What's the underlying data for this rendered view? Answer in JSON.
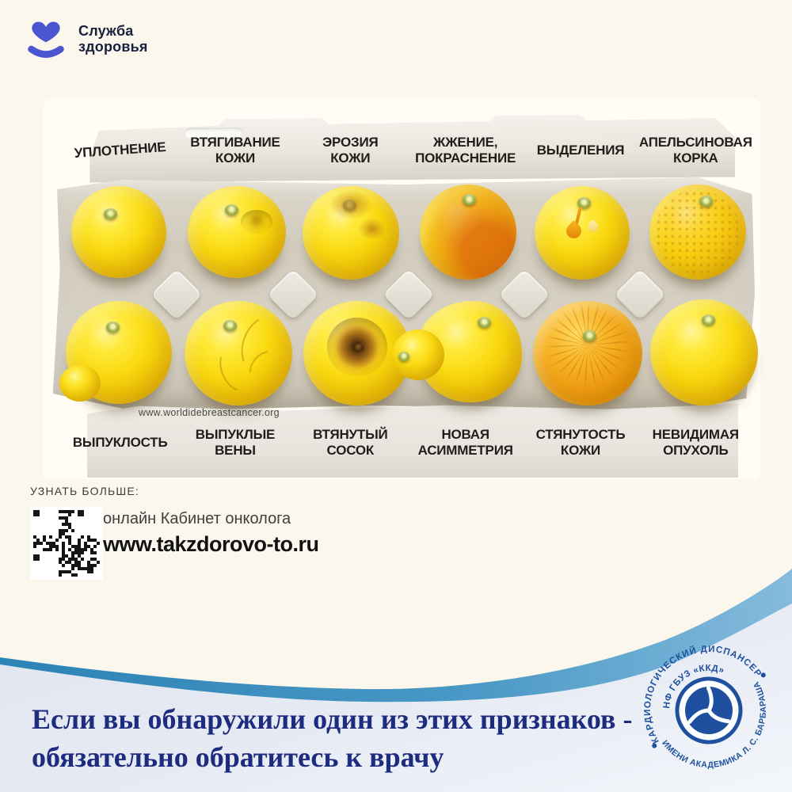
{
  "header": {
    "brand": "Служба\nздоровья"
  },
  "carton": {
    "watermark": "www.worldidebreastcancer.org",
    "top_labels": [
      "УПЛОТНЕНИЕ",
      "ВТЯГИВАНИЕ\nКОЖИ",
      "ЭРОЗИЯ\nКОЖИ",
      "ЖЖЕНИЕ,\nПОКРАСНЕНИЕ",
      "ВЫДЕЛЕНИЯ",
      "АПЕЛЬСИНОВАЯ\nКОРКА"
    ],
    "bottom_labels": [
      "ВЫПУКЛОСТЬ",
      "ВЫПУКЛЫЕ\nВЕНЫ",
      "ВТЯНУТЫЙ\nСОСОК",
      "НОВАЯ\nАСИММЕТРИЯ",
      "СТЯНУТОСТЬ\nКОЖИ",
      "НЕВИДИМАЯ\nОПУХОЛЬ"
    ]
  },
  "learn_more": {
    "title": "УЗНАТЬ БОЛЬШЕ:",
    "line1": "онлайн Кабинет онколога",
    "line2": "www.takzdorovo-to.ru"
  },
  "footer": {
    "message_line1": "Если вы обнаружили один из этих признаков -",
    "message_line2": "обязательно обратитесь к врачу"
  },
  "org_logo": {
    "arc_top": "КАРДИОЛОГИЧЕСКИЙ ДИСПАНСЕР",
    "arc_inner": "НФ ГБУЗ «ККД»",
    "arc_bottom": "ИМЕНИ АКАДЕМИКА Л. С. БАРБАРАША"
  },
  "icons": {
    "brand": "heart-with-smile",
    "qr": "qr-code",
    "org_emblem": "trefoil-circle"
  },
  "colors": {
    "page_background": "#fbf7ec",
    "brand_blue": "#4a55cf",
    "navy_text": "#1e2c80",
    "wave_blue": "#2c83b5",
    "wave_blue_light": "#7fb7da",
    "panel_blue_gray": "#e3e8f2",
    "logo_blue": "#1e509f",
    "lemon_yellow": "#f9d90f",
    "lemon_orange": "#f09d12",
    "carton_gray": "#d2ccbe"
  }
}
